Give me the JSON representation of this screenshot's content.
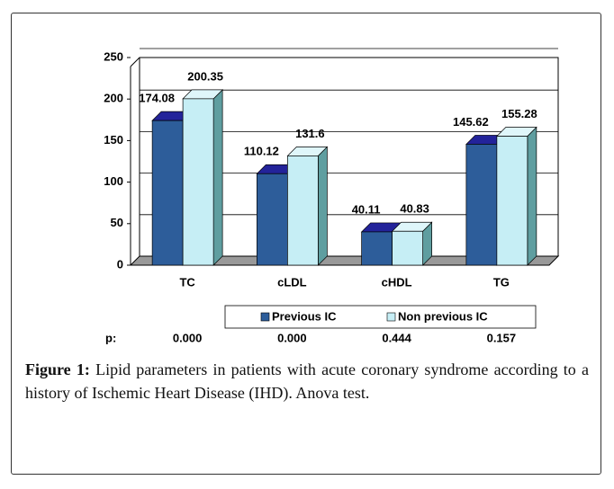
{
  "chart_data": {
    "type": "bar",
    "categories": [
      "TC",
      "cLDL",
      "cHDL",
      "TG"
    ],
    "series": [
      {
        "name": "Previous IC",
        "color": "#2d5d9a",
        "values": [
          174.08,
          110.12,
          40.11,
          145.62
        ]
      },
      {
        "name": "Non previous IC",
        "color": "#c6eef5",
        "values": [
          200.35,
          131.6,
          40.83,
          155.28
        ]
      }
    ],
    "ylim": [
      0,
      250
    ],
    "yticks": [
      0,
      50,
      100,
      150,
      200,
      250
    ],
    "grid": true,
    "p_values": {
      "label": "p:",
      "values": [
        "0.000",
        "0.000",
        "0.444",
        "0.157"
      ]
    }
  },
  "caption": {
    "label": "Figure 1:",
    "text": "Lipid parameters in patients with acute coronary syndrome according to a history of Ischemic Heart Disease (IHD). Anova test."
  }
}
